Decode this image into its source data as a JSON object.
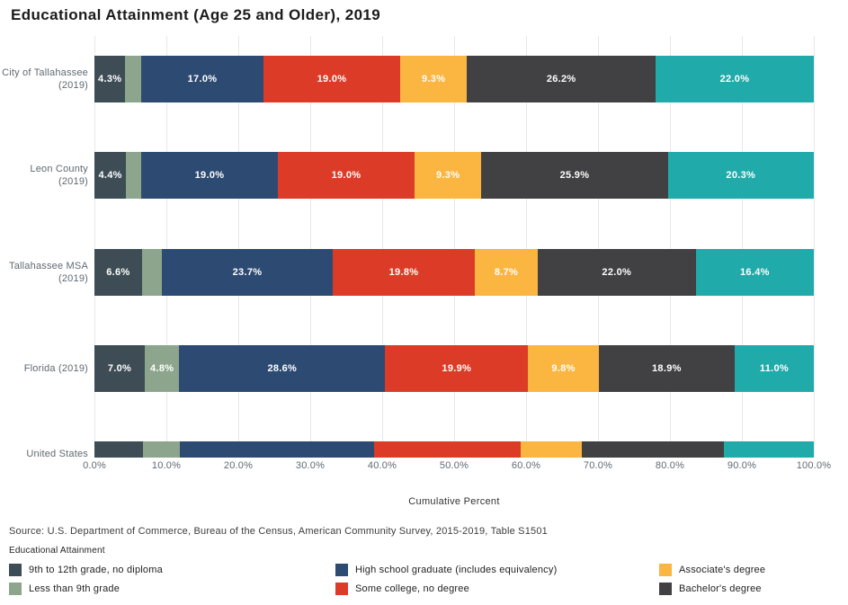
{
  "title": "Educational Attainment (Age 25 and Older), 2019",
  "axis": {
    "x_label": "Cumulative Percent",
    "ticks": [
      "0.0%",
      "10.0%",
      "20.0%",
      "30.0%",
      "40.0%",
      "50.0%",
      "60.0%",
      "70.0%",
      "80.0%",
      "90.0%",
      "100.0%"
    ]
  },
  "source_note": "Source: U.S. Department of Commerce, Bureau of the Census, American Community Survey, 2015-2019, Table S1501",
  "legend": {
    "title": "Educational Attainment",
    "items": [
      {
        "label": "9th to 12th grade, no diploma",
        "color": "#3E4D55"
      },
      {
        "label": "Less than 9th grade",
        "color": "#8CA58C"
      },
      {
        "label": "High school graduate (includes equivalency)",
        "color": "#2D4A73"
      },
      {
        "label": "Some college, no degree",
        "color": "#DC3C27"
      },
      {
        "label": "Associate's degree",
        "color": "#FBB541"
      },
      {
        "label": "Bachelor's degree",
        "color": "#414042"
      }
    ]
  },
  "chart_data": {
    "type": "bar",
    "subtype": "horizontal-stacked",
    "title": "Educational Attainment (Age 25 and Older), 2019",
    "xlabel": "Cumulative Percent",
    "xlim": [
      0,
      100
    ],
    "grid": true,
    "legend_position": "bottom",
    "rows": [
      {
        "lines": [
          "City of Tallahassee",
          "(2019)"
        ]
      },
      {
        "lines": [
          "Leon County",
          "(2019)"
        ]
      },
      {
        "lines": [
          "Tallahassee MSA",
          "(2019)"
        ]
      },
      {
        "lines": [
          "Florida (2019)"
        ]
      },
      {
        "lines": [
          "United States"
        ]
      }
    ],
    "series": [
      {
        "name": "9th to 12th grade, no diploma",
        "color": "#3E4D55",
        "values": [
          4.3,
          4.4,
          6.6,
          7.0,
          6.7
        ],
        "labels": [
          "4.3%",
          "4.4%",
          "6.6%",
          "7.0%",
          ""
        ]
      },
      {
        "name": "Less than 9th grade",
        "color": "#8CA58C",
        "values": [
          2.2,
          2.1,
          2.8,
          4.8,
          5.2
        ],
        "labels": [
          "",
          "",
          "",
          "4.8%",
          ""
        ]
      },
      {
        "name": "High school graduate (includes equivalency)",
        "color": "#2D4A73",
        "values": [
          17.0,
          19.0,
          23.7,
          28.6,
          27.0
        ],
        "labels": [
          "17.0%",
          "19.0%",
          "23.7%",
          "28.6%",
          ""
        ]
      },
      {
        "name": "Some college, no degree",
        "color": "#DC3C27",
        "values": [
          19.0,
          19.0,
          19.8,
          19.9,
          20.4
        ],
        "labels": [
          "19.0%",
          "19.0%",
          "19.8%",
          "19.9%",
          ""
        ]
      },
      {
        "name": "Associate's degree",
        "color": "#FBB541",
        "values": [
          9.3,
          9.3,
          8.7,
          9.8,
          8.4
        ],
        "labels": [
          "9.3%",
          "9.3%",
          "8.7%",
          "9.8%",
          ""
        ]
      },
      {
        "name": "Bachelor's degree",
        "color": "#414042",
        "values": [
          26.2,
          25.9,
          22.0,
          18.9,
          19.8
        ],
        "labels": [
          "26.2%",
          "25.9%",
          "22.0%",
          "18.9%",
          ""
        ]
      },
      {
        "name": "",
        "color": "#21AAAA",
        "values": [
          22.0,
          20.3,
          16.4,
          11.0,
          12.5
        ],
        "labels": [
          "22.0%",
          "20.3%",
          "16.4%",
          "11.0%",
          ""
        ]
      }
    ]
  }
}
